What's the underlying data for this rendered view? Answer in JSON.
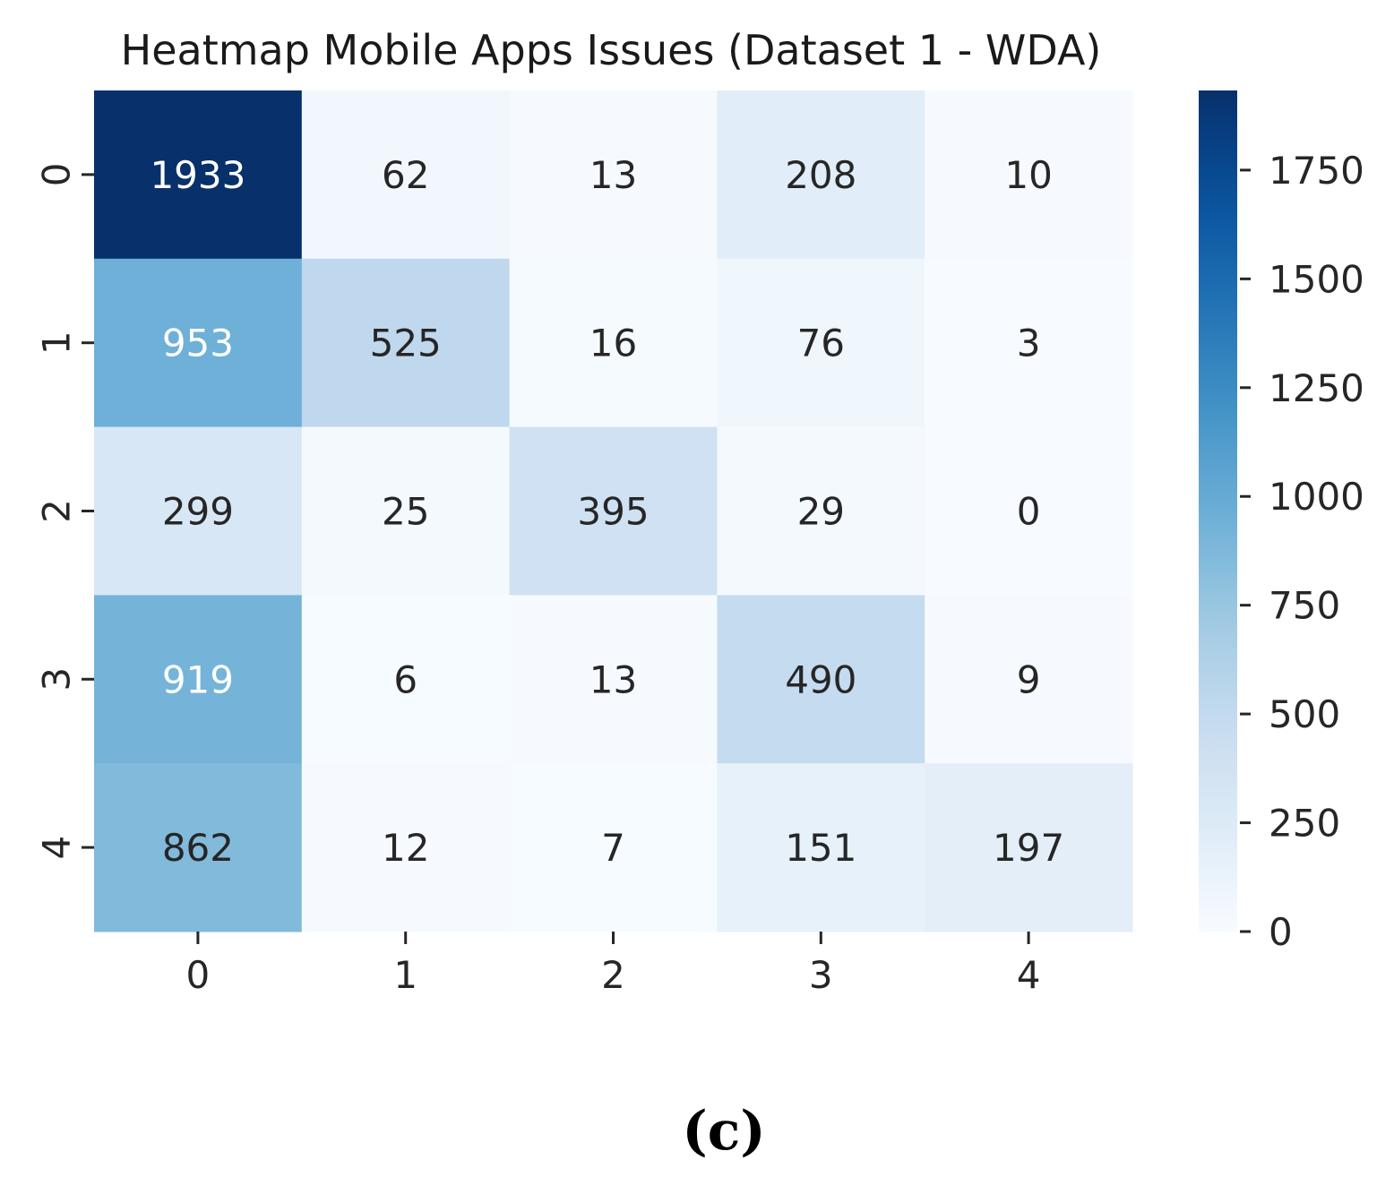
{
  "chart_data": {
    "type": "heatmap",
    "title": "Heatmap  Mobile Apps Issues (Dataset 1 - WDA)",
    "xlabel": "",
    "ylabel": "",
    "row_labels": [
      "0",
      "1",
      "2",
      "3",
      "4"
    ],
    "col_labels": [
      "0",
      "1",
      "2",
      "3",
      "4"
    ],
    "values": [
      [
        1933,
        62,
        13,
        208,
        10
      ],
      [
        953,
        525,
        16,
        76,
        3
      ],
      [
        299,
        25,
        395,
        29,
        0
      ],
      [
        919,
        6,
        13,
        490,
        9
      ],
      [
        862,
        12,
        7,
        151,
        197
      ]
    ],
    "colormap": "Blues",
    "color_range": [
      0,
      1933
    ],
    "colorbar_ticks": [
      0,
      250,
      500,
      750,
      1000,
      1250,
      1500,
      1750
    ],
    "colorbar_tick_labels": [
      "0",
      "250",
      "500",
      "750",
      "1000",
      "1250",
      "1500",
      "1750"
    ],
    "colors": {
      "low": "#f7fbff",
      "high": "#08306b",
      "text_dark": "#262626",
      "text_light": "#ffffff"
    }
  },
  "panel_label": "(c)"
}
